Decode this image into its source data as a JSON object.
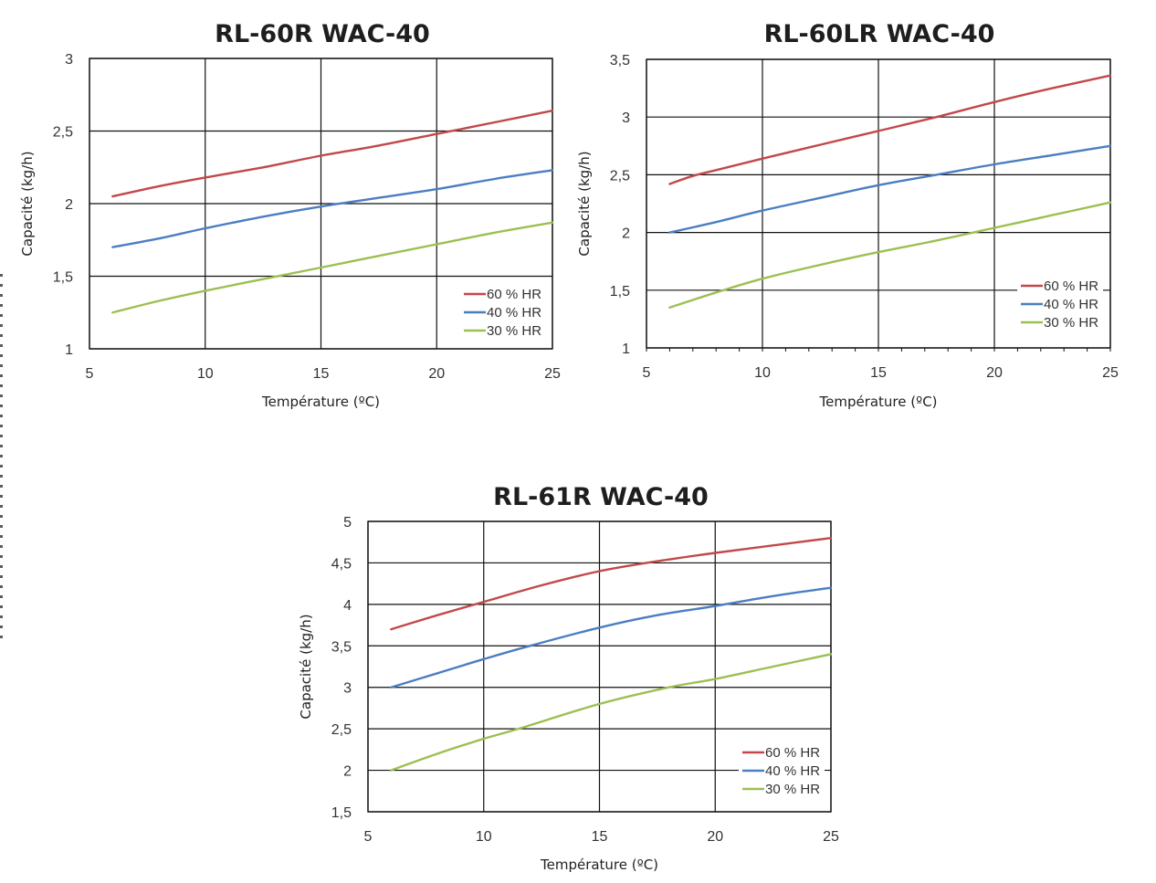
{
  "chart_data": [
    {
      "type": "line",
      "title": "RL-60R WAC-40",
      "xlabel": "Température (ºC)",
      "ylabel": "Capacité (kg/h)",
      "xlim": [
        5,
        25
      ],
      "ylim": [
        1,
        3
      ],
      "xticks": [
        5,
        10,
        15,
        20,
        25
      ],
      "xtick_labels": [
        "5",
        "10",
        "15",
        "20",
        "25"
      ],
      "yticks": [
        1,
        1.5,
        2,
        2.5,
        3
      ],
      "ytick_labels": [
        "1",
        "1,5",
        "2",
        "2,5",
        "3"
      ],
      "minor_xticks": false,
      "grid": true,
      "legend_position": "bottom-right",
      "series": [
        {
          "name": "60 % HR",
          "color": "#C2484B",
          "x": [
            6,
            8,
            10,
            12.5,
            15,
            17.5,
            20,
            22.5,
            25
          ],
          "y": [
            2.05,
            2.12,
            2.18,
            2.25,
            2.33,
            2.4,
            2.48,
            2.56,
            2.64
          ]
        },
        {
          "name": "40 % HR",
          "color": "#4B7EC1",
          "x": [
            6,
            8,
            10,
            12.5,
            15,
            17.5,
            20,
            22.5,
            25
          ],
          "y": [
            1.7,
            1.76,
            1.83,
            1.91,
            1.98,
            2.04,
            2.1,
            2.17,
            2.23
          ]
        },
        {
          "name": "30 % HR",
          "color": "#9BC052",
          "x": [
            6,
            8,
            10,
            12.5,
            15,
            17.5,
            20,
            22.5,
            25
          ],
          "y": [
            1.25,
            1.33,
            1.4,
            1.48,
            1.56,
            1.64,
            1.72,
            1.8,
            1.87
          ]
        }
      ]
    },
    {
      "type": "line",
      "title": "RL-60LR WAC-40",
      "xlabel": "Température (ºC)",
      "ylabel": "Capacité (kg/h)",
      "xlim": [
        5,
        25
      ],
      "ylim": [
        1,
        3.5
      ],
      "xticks": [
        5,
        10,
        15,
        20,
        25
      ],
      "xtick_labels": [
        "5",
        "10",
        "15",
        "20",
        "25"
      ],
      "yticks": [
        1,
        1.5,
        2,
        2.5,
        3,
        3.5
      ],
      "ytick_labels": [
        "1",
        "1,5",
        "2",
        "2,5",
        "3",
        "3,5"
      ],
      "minor_xticks": true,
      "grid": true,
      "legend_position": "bottom-right",
      "series": [
        {
          "name": "60 % HR",
          "color": "#C2484B",
          "x": [
            6,
            7,
            8,
            10,
            12.5,
            15,
            17.5,
            20,
            22.5,
            25
          ],
          "y": [
            2.42,
            2.49,
            2.54,
            2.64,
            2.76,
            2.88,
            3.0,
            3.13,
            3.25,
            3.36
          ]
        },
        {
          "name": "40 % HR",
          "color": "#4B7EC1",
          "x": [
            6,
            8,
            10,
            12.5,
            15,
            17.5,
            20,
            22.5,
            25
          ],
          "y": [
            2.0,
            2.09,
            2.19,
            2.3,
            2.41,
            2.5,
            2.59,
            2.67,
            2.75
          ]
        },
        {
          "name": "30 % HR",
          "color": "#9BC052",
          "x": [
            6,
            8,
            10,
            12.5,
            15,
            17.5,
            20,
            22.5,
            25
          ],
          "y": [
            1.35,
            1.48,
            1.6,
            1.72,
            1.83,
            1.93,
            2.04,
            2.15,
            2.26
          ]
        }
      ]
    },
    {
      "type": "line",
      "title": "RL-61R WAC-40",
      "xlabel": "Température (ºC)",
      "ylabel": "Capacité (kg/h)",
      "xlim": [
        5,
        25
      ],
      "ylim": [
        1.5,
        5
      ],
      "xticks": [
        5,
        10,
        15,
        20,
        25
      ],
      "xtick_labels": [
        "5",
        "10",
        "15",
        "20",
        "25"
      ],
      "yticks": [
        1.5,
        2,
        2.5,
        3,
        3.5,
        4,
        4.5,
        5
      ],
      "ytick_labels": [
        "1,5",
        "2",
        "2,5",
        "3",
        "3,5",
        "4",
        "4,5",
        "5"
      ],
      "minor_xticks": false,
      "grid": true,
      "legend_position": "bottom-right",
      "series": [
        {
          "name": "60 % HR",
          "color": "#C2484B",
          "x": [
            6,
            8,
            10,
            12.5,
            15,
            17.5,
            20,
            22.5,
            25
          ],
          "y": [
            3.7,
            3.87,
            4.03,
            4.23,
            4.4,
            4.52,
            4.62,
            4.71,
            4.8
          ]
        },
        {
          "name": "40 % HR",
          "color": "#4B7EC1",
          "x": [
            6,
            8,
            10,
            12,
            15,
            17.5,
            20,
            22.5,
            25
          ],
          "y": [
            3.0,
            3.17,
            3.34,
            3.5,
            3.72,
            3.87,
            3.98,
            4.1,
            4.2
          ]
        },
        {
          "name": "30 % HR",
          "color": "#9BC052",
          "x": [
            6,
            8,
            10,
            11.5,
            15,
            18,
            20,
            22.5,
            25
          ],
          "y": [
            2.0,
            2.2,
            2.38,
            2.5,
            2.8,
            3.0,
            3.1,
            3.25,
            3.4
          ]
        }
      ]
    }
  ]
}
